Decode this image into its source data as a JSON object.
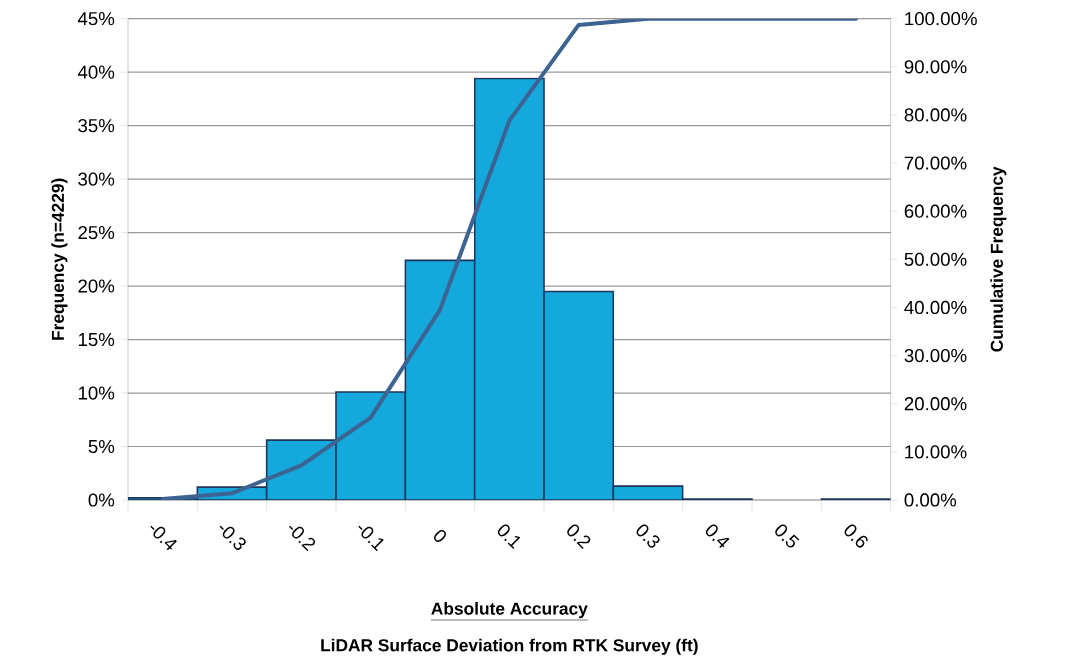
{
  "chart_data": {
    "type": "bar",
    "xlabel": "Absolute Accuracy",
    "ylabel": "Frequency (n=4229)",
    "y2label": "Cumulative Frequency",
    "annotations": [
      "LiDAR Surface Deviation from RTK Survey (ft)"
    ],
    "categories": [
      "-0.4",
      "-0.3",
      "-0.2",
      "-0.1",
      "0",
      "0.1",
      "0.2",
      "0.3",
      "0.4",
      "0.5",
      "0.6"
    ],
    "series": [
      {
        "color": "#15a8dc",
        "values": [
          0.2,
          1.2,
          5.6,
          10.1,
          22.4,
          39.4,
          19.5,
          1.3,
          0.1,
          0,
          0.1
        ]
      },
      {
        "type": "line",
        "axis": "y2",
        "color": "#3c6391",
        "values": [
          0.2,
          1.4,
          7.2,
          17.1,
          39.5,
          78.8,
          98.7,
          100,
          100,
          100,
          100
        ]
      }
    ],
    "ylim": [
      0,
      45
    ],
    "yticks": [
      {
        "value": 0,
        "label": "0%"
      },
      {
        "value": 5,
        "label": "5%"
      },
      {
        "value": 10,
        "label": "10%"
      },
      {
        "value": 15,
        "label": "15%"
      },
      {
        "value": 20,
        "label": "20%"
      },
      {
        "value": 25,
        "label": "25%"
      },
      {
        "value": 30,
        "label": "30%"
      },
      {
        "value": 35,
        "label": "35%"
      },
      {
        "value": 40,
        "label": "40%"
      },
      {
        "value": 45,
        "label": "45%"
      }
    ],
    "y2lim": [
      0,
      100
    ],
    "y2ticks": [
      {
        "value": 0,
        "label": "0.00%"
      },
      {
        "value": 10,
        "label": "10.00%"
      },
      {
        "value": 20,
        "label": "20.00%"
      },
      {
        "value": 30,
        "label": "30.00%"
      },
      {
        "value": 40,
        "label": "40.00%"
      },
      {
        "value": 50,
        "label": "50.00%"
      },
      {
        "value": 60,
        "label": "60.00%"
      },
      {
        "value": 70,
        "label": "70.00%"
      },
      {
        "value": 80,
        "label": "80.00%"
      },
      {
        "value": 90,
        "label": "90.00%"
      },
      {
        "value": 100,
        "label": "100.00%"
      }
    ],
    "grid": "y"
  }
}
